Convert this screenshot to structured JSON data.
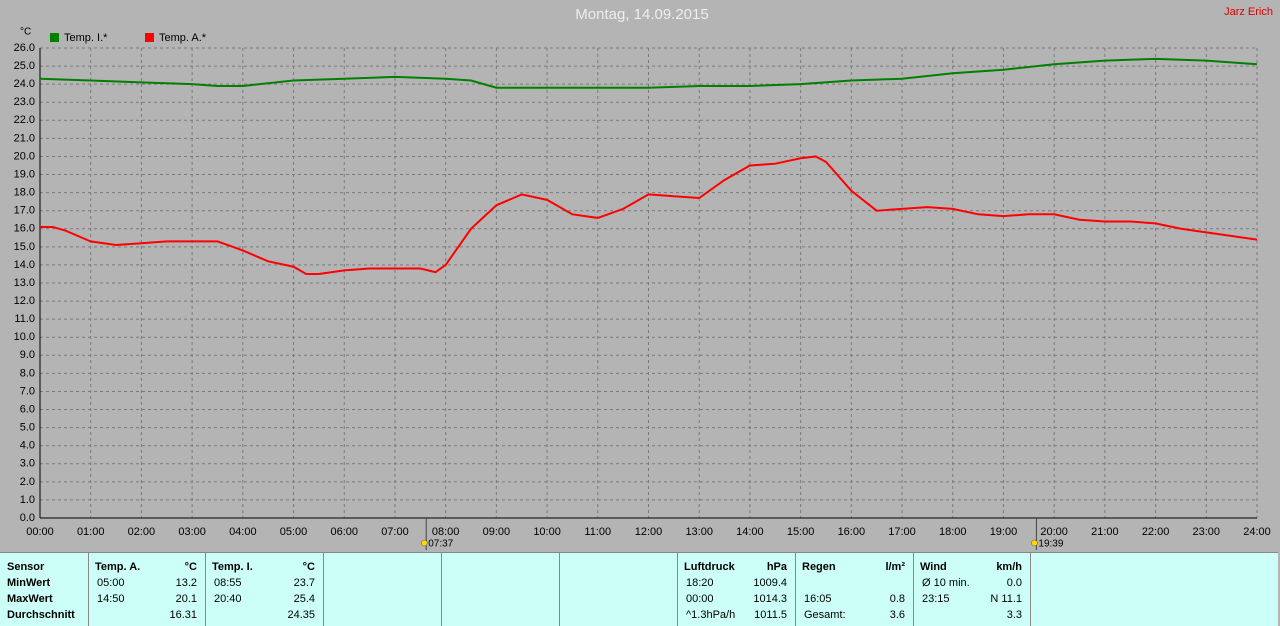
{
  "chart_data": {
    "type": "line",
    "title": "Montag, 14.09.2015",
    "author": "Jarz Erich",
    "y_unit": "°C",
    "grid": true,
    "xlim": [
      0,
      24
    ],
    "ylim": [
      0,
      26
    ],
    "xticks": [
      {
        "value": 0,
        "label": "00:00"
      },
      {
        "value": 1,
        "label": "01:00"
      },
      {
        "value": 2,
        "label": "02:00"
      },
      {
        "value": 3,
        "label": "03:00"
      },
      {
        "value": 4,
        "label": "04:00"
      },
      {
        "value": 5,
        "label": "05:00"
      },
      {
        "value": 6,
        "label": "06:00"
      },
      {
        "value": 7,
        "label": "07:00"
      },
      {
        "value": 8,
        "label": "08:00"
      },
      {
        "value": 9,
        "label": "09:00"
      },
      {
        "value": 10,
        "label": "10:00"
      },
      {
        "value": 11,
        "label": "11:00"
      },
      {
        "value": 12,
        "label": "12:00"
      },
      {
        "value": 13,
        "label": "13:00"
      },
      {
        "value": 14,
        "label": "14:00"
      },
      {
        "value": 15,
        "label": "15:00"
      },
      {
        "value": 16,
        "label": "16:00"
      },
      {
        "value": 17,
        "label": "17:00"
      },
      {
        "value": 18,
        "label": "18:00"
      },
      {
        "value": 19,
        "label": "19:00"
      },
      {
        "value": 20,
        "label": "20:00"
      },
      {
        "value": 21,
        "label": "21:00"
      },
      {
        "value": 22,
        "label": "22:00"
      },
      {
        "value": 23,
        "label": "23:00"
      },
      {
        "value": 24,
        "label": "24:00"
      }
    ],
    "yticks": [
      {
        "value": 0,
        "label": "0.0"
      },
      {
        "value": 1,
        "label": "1.0"
      },
      {
        "value": 2,
        "label": "2.0"
      },
      {
        "value": 3,
        "label": "3.0"
      },
      {
        "value": 4,
        "label": "4.0"
      },
      {
        "value": 5,
        "label": "5.0"
      },
      {
        "value": 6,
        "label": "6.0"
      },
      {
        "value": 7,
        "label": "7.0"
      },
      {
        "value": 8,
        "label": "8.0"
      },
      {
        "value": 9,
        "label": "9.0"
      },
      {
        "value": 10,
        "label": "10.0"
      },
      {
        "value": 11,
        "label": "11.0"
      },
      {
        "value": 12,
        "label": "12.0"
      },
      {
        "value": 13,
        "label": "13.0"
      },
      {
        "value": 14,
        "label": "14.0"
      },
      {
        "value": 15,
        "label": "15.0"
      },
      {
        "value": 16,
        "label": "16.0"
      },
      {
        "value": 17,
        "label": "17.0"
      },
      {
        "value": 18,
        "label": "18.0"
      },
      {
        "value": 19,
        "label": "19.0"
      },
      {
        "value": 20,
        "label": "20.0"
      },
      {
        "value": 21,
        "label": "21.0"
      },
      {
        "value": 22,
        "label": "22.0"
      },
      {
        "value": 23,
        "label": "23.0"
      },
      {
        "value": 24,
        "label": "24.0"
      },
      {
        "value": 25,
        "label": "25.0"
      },
      {
        "value": 26,
        "label": "26.0"
      }
    ],
    "sun_markers": [
      {
        "value": 7.6167,
        "label": "07:37"
      },
      {
        "value": 19.65,
        "label": "19:39"
      }
    ],
    "series": [
      {
        "name": "Temp. I.*",
        "color": "#008000",
        "x": [
          0,
          1,
          2,
          3,
          3.5,
          4,
          5,
          6,
          7,
          8,
          8.5,
          9,
          10,
          11,
          12,
          13,
          14,
          15,
          16,
          17,
          18,
          19,
          20,
          21,
          22,
          23,
          24
        ],
        "values": [
          24.3,
          24.2,
          24.1,
          24.0,
          23.9,
          23.9,
          24.2,
          24.3,
          24.4,
          24.3,
          24.2,
          23.8,
          23.8,
          23.8,
          23.8,
          23.9,
          23.9,
          24.0,
          24.2,
          24.3,
          24.6,
          24.8,
          25.1,
          25.3,
          25.4,
          25.3,
          25.1
        ]
      },
      {
        "name": "Temp. A.*",
        "color": "#ff0000",
        "x": [
          0,
          0.25,
          0.5,
          0.75,
          1,
          1.5,
          2,
          2.5,
          3,
          3.5,
          4,
          4.5,
          5,
          5.25,
          5.5,
          6,
          6.5,
          7,
          7.5,
          7.8,
          8,
          8.5,
          9,
          9.5,
          10,
          10.5,
          11,
          11.5,
          12,
          12.5,
          13,
          13.5,
          14,
          14.5,
          15,
          15.3,
          15.5,
          16,
          16.5,
          17,
          17.5,
          18,
          18.5,
          19,
          19.5,
          20,
          20.5,
          21,
          21.5,
          22,
          22.5,
          23,
          23.5,
          24
        ],
        "values": [
          16.1,
          16.1,
          15.9,
          15.6,
          15.3,
          15.1,
          15.2,
          15.3,
          15.3,
          15.3,
          14.8,
          14.2,
          13.9,
          13.5,
          13.5,
          13.7,
          13.8,
          13.8,
          13.8,
          13.6,
          14.0,
          16.0,
          17.3,
          17.9,
          17.6,
          16.8,
          16.6,
          17.1,
          17.9,
          17.8,
          17.7,
          18.7,
          19.5,
          19.6,
          19.9,
          20.0,
          19.7,
          18.1,
          17.0,
          17.1,
          17.2,
          17.1,
          16.8,
          16.7,
          16.8,
          16.8,
          16.5,
          16.4,
          16.4,
          16.3,
          16.0,
          15.8,
          15.6,
          15.4
        ]
      }
    ]
  },
  "table": {
    "groups": [
      {
        "header": [
          "Sensor"
        ],
        "rows": [
          [
            "MinWert"
          ],
          [
            "MaxWert"
          ],
          [
            "Durchschnitt"
          ]
        ]
      },
      {
        "header": [
          "Temp. A.",
          "°C"
        ],
        "rows": [
          [
            "05:00",
            "13.2"
          ],
          [
            "14:50",
            "20.1"
          ],
          [
            null,
            "16.31"
          ]
        ]
      },
      {
        "header": [
          "Temp. I.",
          "°C"
        ],
        "rows": [
          [
            "08:55",
            "23.7"
          ],
          [
            "20:40",
            "25.4"
          ],
          [
            null,
            "24.35"
          ]
        ]
      },
      {
        "header": [
          "Luftdruck",
          "hPa"
        ],
        "rows": [
          [
            "18:20",
            "1009.4"
          ],
          [
            "00:00",
            "1014.3"
          ],
          [
            "^1.3hPa/h",
            "1011.5"
          ]
        ]
      },
      {
        "header": [
          "Regen",
          "l/m²"
        ],
        "rows": [
          [
            null,
            null
          ],
          [
            "16:05",
            "0.8"
          ],
          [
            "Gesamt:",
            "3.6"
          ]
        ]
      },
      {
        "header": [
          "Wind",
          "km/h"
        ],
        "rows": [
          [
            "Ø 10 min.",
            "0.0"
          ],
          [
            "23:15",
            "N 11.1"
          ],
          [
            null,
            "3.3"
          ]
        ]
      }
    ]
  }
}
